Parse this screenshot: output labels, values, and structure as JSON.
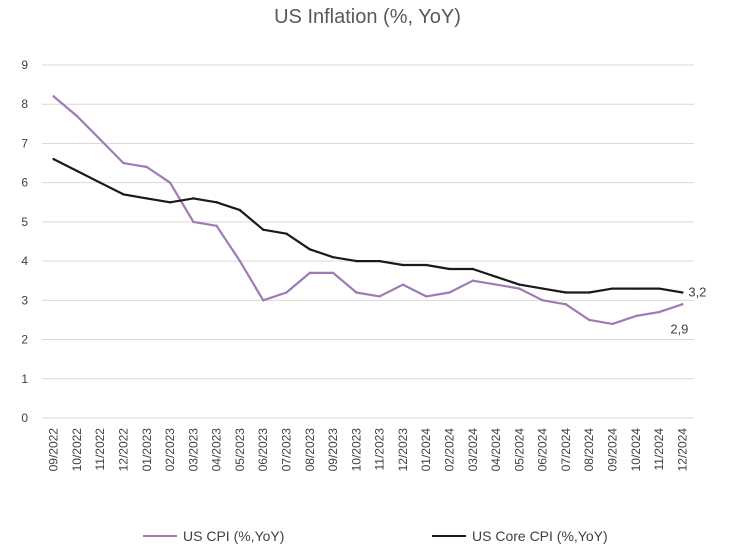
{
  "chart_data": {
    "type": "line",
    "title": "US Inflation (%, YoY)",
    "xlabel": "",
    "ylabel": "",
    "ylim": [
      0,
      9
    ],
    "yticks": [
      "0",
      "1",
      "2",
      "3",
      "4",
      "5",
      "6",
      "7",
      "8",
      "9"
    ],
    "grid": "horizontal",
    "legend_position": "bottom",
    "categories": [
      "09/2022",
      "10/2022",
      "11/2022",
      "12/2022",
      "01/2023",
      "02/2023",
      "03/2023",
      "04/2023",
      "05/2023",
      "06/2023",
      "07/2023",
      "08/2023",
      "09/2023",
      "10/2023",
      "11/2023",
      "12/2023",
      "01/2024",
      "02/2024",
      "03/2024",
      "04/2024",
      "05/2024",
      "06/2024",
      "07/2024",
      "08/2024",
      "09/2024",
      "10/2024",
      "11/2024",
      "12/2024"
    ],
    "series": [
      {
        "name": "US CPI (%,YoY)",
        "color": "#9e7bb5",
        "values": [
          8.2,
          7.7,
          7.1,
          6.5,
          6.4,
          6.0,
          5.0,
          4.9,
          4.0,
          3.0,
          3.2,
          3.7,
          3.7,
          3.2,
          3.1,
          3.4,
          3.1,
          3.2,
          3.5,
          3.4,
          3.3,
          3.0,
          2.9,
          2.5,
          2.4,
          2.6,
          2.7,
          2.9
        ],
        "end_label": "2,9"
      },
      {
        "name": "US Core CPI (%,YoY)",
        "color": "#1a1a1a",
        "values": [
          6.6,
          6.3,
          6.0,
          5.7,
          5.6,
          5.5,
          5.6,
          5.5,
          5.3,
          4.8,
          4.7,
          4.3,
          4.1,
          4.0,
          4.0,
          3.9,
          3.9,
          3.8,
          3.8,
          3.6,
          3.4,
          3.3,
          3.2,
          3.2,
          3.3,
          3.3,
          3.3,
          3.2
        ],
        "end_label": "3,2"
      }
    ]
  }
}
